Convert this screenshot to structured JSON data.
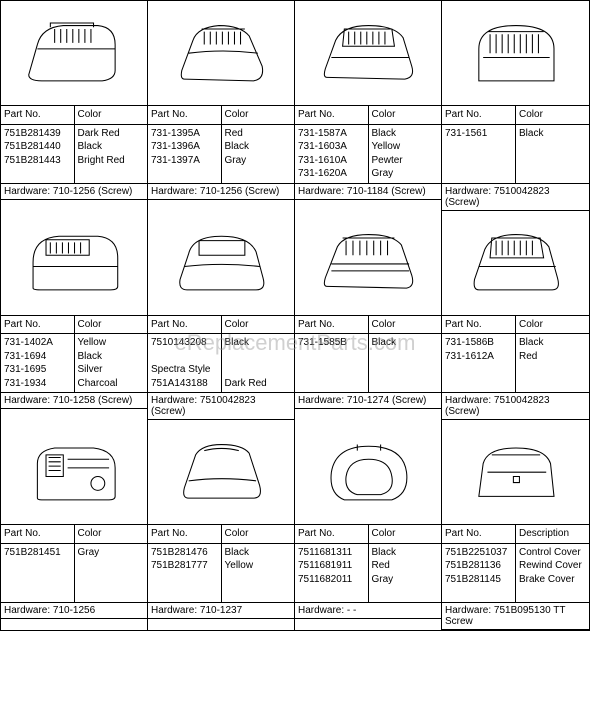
{
  "watermark": "eReplacementParts.com",
  "labels": {
    "partNo": "Part No.",
    "color": "Color",
    "hardware": "Hardware:",
    "description": "Description"
  },
  "cells": [
    {
      "parts": [
        "751B281439",
        "751B281440",
        "751B281443"
      ],
      "colors": [
        "Dark Red",
        "Black",
        "Bright Red"
      ],
      "hardware": "710-1256 (Screw)",
      "svg": "cover1"
    },
    {
      "parts": [
        "731-1395A",
        "731-1396A",
        "731-1397A"
      ],
      "colors": [
        "Red",
        "Black",
        "Gray"
      ],
      "hardware": "710-1256 (Screw)",
      "svg": "cover2"
    },
    {
      "parts": [
        "731-1587A",
        "731-1603A",
        "731-1610A",
        "731-1620A"
      ],
      "colors": [
        "Black",
        "Yellow",
        "Pewter",
        "Gray"
      ],
      "hardware": "710-1184 (Screw)",
      "svg": "cover3"
    },
    {
      "parts": [
        "731-1561"
      ],
      "colors": [
        "Black"
      ],
      "hardware": "7510042823 (Screw)",
      "svg": "cover4"
    },
    {
      "parts": [
        "731-1402A",
        "731-1694",
        "731-1695",
        "731-1934"
      ],
      "colors": [
        "Yellow",
        "Black",
        "Silver",
        "Charcoal"
      ],
      "hardware": "710-1258 (Screw)",
      "svg": "cover5"
    },
    {
      "parts": [
        "7510143208",
        "",
        "Spectra Style",
        "751A143188"
      ],
      "colors": [
        "Black",
        "",
        "",
        "Dark Red"
      ],
      "hardware": "7510042823 (Screw)",
      "svg": "cover6"
    },
    {
      "parts": [
        "731-1585B"
      ],
      "colors": [
        "Black"
      ],
      "hardware": "710-1274 (Screw)",
      "svg": "cover7"
    },
    {
      "parts": [
        "731-1586B",
        "731-1612A"
      ],
      "colors": [
        "Black",
        "Red"
      ],
      "hardware": "7510042823 (Screw)",
      "svg": "cover8"
    },
    {
      "parts": [
        "751B281451"
      ],
      "colors": [
        "Gray"
      ],
      "hardware": "710-1256",
      "svg": "cover9"
    },
    {
      "parts": [
        "751B281476",
        "751B281777"
      ],
      "colors": [
        "Black",
        "Yellow"
      ],
      "hardware": "710-1237",
      "svg": "cover10"
    },
    {
      "parts": [
        "7511681311",
        "7511681911",
        "7511682011"
      ],
      "colors": [
        "Black",
        "Red",
        "Gray"
      ],
      "hardware": "- -",
      "svg": "cover11"
    },
    {
      "col2Label": "Description",
      "parts": [
        "751B2251037",
        "751B281136",
        "751B281145"
      ],
      "colors": [
        "Control Cover",
        "Rewind Cover",
        "Brake Cover"
      ],
      "hardware": "751B095130    TT Screw",
      "svg": "cover12"
    }
  ],
  "svgs": {
    "stroke": "#000",
    "strokeWidth": 1,
    "fill": "none"
  }
}
